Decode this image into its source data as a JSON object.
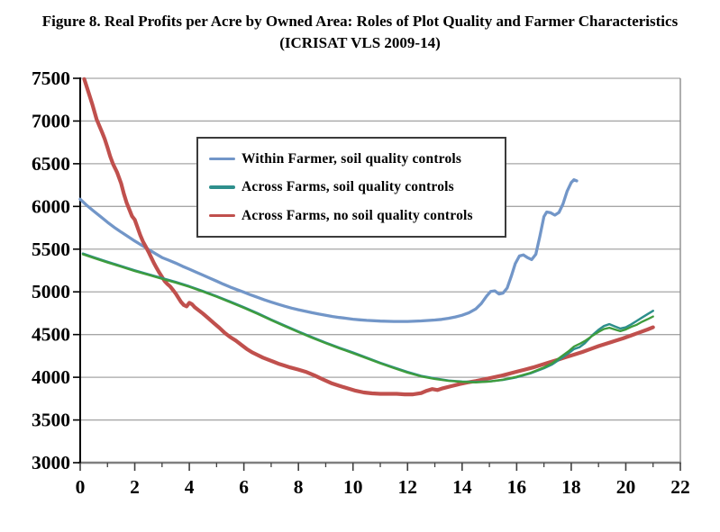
{
  "title": {
    "line1": "Figure 8. Real Profits per Acre by Owned Area: Roles of Plot Quality and Farmer Characteristics",
    "line2": "(ICRISAT VLS 2009-14)"
  },
  "colors": {
    "blue": "#7296C8",
    "teal": "#2E8F8C",
    "green": "#3E9C3C",
    "red": "#C0504D",
    "gridline": "#A6A6A6",
    "axis_y": "#000000",
    "axis_x": "#7F7F7F",
    "plot_right_border": "#8C8C8C",
    "tick": "#404040"
  },
  "chart_data": {
    "type": "line",
    "title": "Figure 8. Real Profits per Acre by Owned Area: Roles of Plot Quality and Farmer Characteristics (ICRISAT VLS 2009-14)",
    "xlabel": "",
    "ylabel": "",
    "xlim": [
      0,
      22
    ],
    "ylim": [
      3000,
      7500
    ],
    "x_ticks": [
      0,
      2,
      4,
      6,
      8,
      10,
      12,
      14,
      16,
      18,
      20,
      22
    ],
    "x_minor_ticks": [
      1,
      3,
      5,
      7,
      9,
      11,
      13,
      15,
      17,
      19,
      21
    ],
    "y_ticks": [
      3000,
      3500,
      4000,
      4500,
      5000,
      5500,
      6000,
      6500,
      7000,
      7500
    ],
    "grid": "horizontal",
    "legend_position": "upper-left-inside",
    "legend": [
      {
        "label": "Within Farmer, soil quality controls",
        "color": "#7296C8"
      },
      {
        "label": "Across Farms, soil quality controls",
        "color": "#2E8F8C"
      },
      {
        "label": "Across Farms, no soil quality controls",
        "color": "#C0504D"
      }
    ],
    "series": [
      {
        "name": "Within Farmer, soil quality controls",
        "color": "#7296C8",
        "width": 3.3,
        "in_legend": true,
        "points": [
          [
            0,
            6085
          ],
          [
            0.25,
            6010
          ],
          [
            0.5,
            5945
          ],
          [
            0.75,
            5880
          ],
          [
            1,
            5815
          ],
          [
            1.25,
            5755
          ],
          [
            1.5,
            5700
          ],
          [
            1.75,
            5648
          ],
          [
            2,
            5596
          ],
          [
            2.25,
            5546
          ],
          [
            2.5,
            5498
          ],
          [
            2.75,
            5448
          ],
          [
            3,
            5402
          ],
          [
            3.25,
            5370
          ],
          [
            3.5,
            5336
          ],
          [
            3.75,
            5300
          ],
          [
            4,
            5266
          ],
          [
            4.25,
            5230
          ],
          [
            4.5,
            5196
          ],
          [
            4.75,
            5160
          ],
          [
            5,
            5126
          ],
          [
            5.25,
            5090
          ],
          [
            5.5,
            5056
          ],
          [
            5.75,
            5026
          ],
          [
            6,
            4996
          ],
          [
            6.25,
            4964
          ],
          [
            6.5,
            4936
          ],
          [
            6.75,
            4906
          ],
          [
            7,
            4880
          ],
          [
            7.25,
            4856
          ],
          [
            7.5,
            4832
          ],
          [
            7.75,
            4810
          ],
          [
            8,
            4790
          ],
          [
            8.25,
            4774
          ],
          [
            8.5,
            4756
          ],
          [
            8.75,
            4740
          ],
          [
            9,
            4726
          ],
          [
            9.25,
            4712
          ],
          [
            9.5,
            4700
          ],
          [
            9.75,
            4690
          ],
          [
            10,
            4680
          ],
          [
            10.25,
            4672
          ],
          [
            10.5,
            4666
          ],
          [
            11,
            4658
          ],
          [
            11.5,
            4654
          ],
          [
            12,
            4654
          ],
          [
            12.5,
            4660
          ],
          [
            13,
            4670
          ],
          [
            13.25,
            4678
          ],
          [
            13.5,
            4690
          ],
          [
            13.75,
            4706
          ],
          [
            14,
            4726
          ],
          [
            14.25,
            4756
          ],
          [
            14.5,
            4800
          ],
          [
            14.7,
            4862
          ],
          [
            14.9,
            4952
          ],
          [
            15.05,
            5005
          ],
          [
            15.2,
            5012
          ],
          [
            15.35,
            4975
          ],
          [
            15.5,
            4985
          ],
          [
            15.65,
            5045
          ],
          [
            15.8,
            5180
          ],
          [
            15.95,
            5330
          ],
          [
            16.1,
            5420
          ],
          [
            16.25,
            5432
          ],
          [
            16.4,
            5400
          ],
          [
            16.55,
            5378
          ],
          [
            16.7,
            5440
          ],
          [
            16.85,
            5650
          ],
          [
            17,
            5880
          ],
          [
            17.1,
            5935
          ],
          [
            17.25,
            5925
          ],
          [
            17.4,
            5898
          ],
          [
            17.55,
            5930
          ],
          [
            17.7,
            6030
          ],
          [
            17.85,
            6180
          ],
          [
            18,
            6280
          ],
          [
            18.1,
            6312
          ],
          [
            18.2,
            6300
          ]
        ]
      },
      {
        "name": "Across Farms, no soil quality controls",
        "color": "#C0504D",
        "width": 4.2,
        "in_legend": true,
        "points": [
          [
            0.15,
            7490
          ],
          [
            0.3,
            7340
          ],
          [
            0.45,
            7190
          ],
          [
            0.6,
            7020
          ],
          [
            0.7,
            6945
          ],
          [
            0.8,
            6870
          ],
          [
            0.9,
            6790
          ],
          [
            1,
            6690
          ],
          [
            1.1,
            6585
          ],
          [
            1.2,
            6500
          ],
          [
            1.35,
            6400
          ],
          [
            1.5,
            6270
          ],
          [
            1.6,
            6150
          ],
          [
            1.7,
            6045
          ],
          [
            1.8,
            5965
          ],
          [
            1.9,
            5885
          ],
          [
            2,
            5845
          ],
          [
            2.1,
            5755
          ],
          [
            2.2,
            5665
          ],
          [
            2.3,
            5590
          ],
          [
            2.4,
            5530
          ],
          [
            2.5,
            5470
          ],
          [
            2.6,
            5405
          ],
          [
            2.7,
            5340
          ],
          [
            2.8,
            5280
          ],
          [
            2.9,
            5225
          ],
          [
            3,
            5175
          ],
          [
            3.1,
            5125
          ],
          [
            3.2,
            5090
          ],
          [
            3.3,
            5062
          ],
          [
            3.4,
            5022
          ],
          [
            3.5,
            4980
          ],
          [
            3.6,
            4930
          ],
          [
            3.7,
            4880
          ],
          [
            3.8,
            4845
          ],
          [
            3.9,
            4830
          ],
          [
            4,
            4872
          ],
          [
            4.1,
            4855
          ],
          [
            4.2,
            4820
          ],
          [
            4.35,
            4782
          ],
          [
            4.5,
            4745
          ],
          [
            4.7,
            4690
          ],
          [
            4.9,
            4635
          ],
          [
            5.1,
            4580
          ],
          [
            5.3,
            4520
          ],
          [
            5.5,
            4470
          ],
          [
            5.7,
            4430
          ],
          [
            5.9,
            4382
          ],
          [
            6.1,
            4332
          ],
          [
            6.3,
            4292
          ],
          [
            6.5,
            4260
          ],
          [
            6.7,
            4230
          ],
          [
            6.9,
            4205
          ],
          [
            7.1,
            4180
          ],
          [
            7.3,
            4155
          ],
          [
            7.5,
            4135
          ],
          [
            7.7,
            4115
          ],
          [
            8,
            4090
          ],
          [
            8.3,
            4060
          ],
          [
            8.6,
            4020
          ],
          [
            8.9,
            3975
          ],
          [
            9.2,
            3932
          ],
          [
            9.5,
            3900
          ],
          [
            9.8,
            3870
          ],
          [
            10.1,
            3842
          ],
          [
            10.4,
            3822
          ],
          [
            10.7,
            3812
          ],
          [
            11,
            3806
          ],
          [
            11.3,
            3806
          ],
          [
            11.6,
            3806
          ],
          [
            11.9,
            3800
          ],
          [
            12.2,
            3800
          ],
          [
            12.5,
            3815
          ],
          [
            12.7,
            3842
          ],
          [
            12.9,
            3862
          ],
          [
            13.1,
            3850
          ],
          [
            13.3,
            3872
          ],
          [
            13.6,
            3896
          ],
          [
            13.9,
            3920
          ],
          [
            14.2,
            3940
          ],
          [
            14.5,
            3956
          ],
          [
            14.8,
            3976
          ],
          [
            15.1,
            3996
          ],
          [
            15.4,
            4016
          ],
          [
            15.7,
            4040
          ],
          [
            16,
            4065
          ],
          [
            16.3,
            4090
          ],
          [
            16.6,
            4115
          ],
          [
            16.9,
            4145
          ],
          [
            17.2,
            4175
          ],
          [
            17.5,
            4205
          ],
          [
            17.8,
            4235
          ],
          [
            18.1,
            4265
          ],
          [
            18.4,
            4295
          ],
          [
            18.7,
            4330
          ],
          [
            19,
            4365
          ],
          [
            19.3,
            4395
          ],
          [
            19.6,
            4425
          ],
          [
            19.9,
            4455
          ],
          [
            20.2,
            4490
          ],
          [
            20.5,
            4525
          ],
          [
            20.8,
            4560
          ],
          [
            21,
            4585
          ]
        ]
      },
      {
        "name": "Across Farms, soil quality controls",
        "color": "#2E8F8C",
        "width": 2.5,
        "in_legend": true,
        "points": [
          [
            0.1,
            5448
          ],
          [
            0.5,
            5405
          ],
          [
            1,
            5352
          ],
          [
            1.5,
            5302
          ],
          [
            2,
            5252
          ],
          [
            2.5,
            5206
          ],
          [
            3,
            5160
          ],
          [
            3.5,
            5116
          ],
          [
            4,
            5066
          ],
          [
            4.5,
            5010
          ],
          [
            5,
            4950
          ],
          [
            5.5,
            4886
          ],
          [
            6,
            4820
          ],
          [
            6.5,
            4750
          ],
          [
            7,
            4676
          ],
          [
            7.5,
            4606
          ],
          [
            8,
            4536
          ],
          [
            8.5,
            4470
          ],
          [
            9,
            4406
          ],
          [
            9.5,
            4346
          ],
          [
            10,
            4290
          ],
          [
            10.5,
            4230
          ],
          [
            11,
            4170
          ],
          [
            11.5,
            4115
          ],
          [
            12,
            4062
          ],
          [
            12.5,
            4016
          ],
          [
            13,
            3986
          ],
          [
            13.5,
            3962
          ],
          [
            14,
            3950
          ],
          [
            14.5,
            3944
          ],
          [
            15,
            3952
          ],
          [
            15.5,
            3970
          ],
          [
            16,
            4000
          ],
          [
            16.5,
            4045
          ],
          [
            17,
            4105
          ],
          [
            17.3,
            4150
          ],
          [
            17.6,
            4215
          ],
          [
            17.9,
            4282
          ],
          [
            18.1,
            4330
          ],
          [
            18.3,
            4352
          ],
          [
            18.5,
            4400
          ],
          [
            18.8,
            4500
          ],
          [
            19,
            4556
          ],
          [
            19.2,
            4600
          ],
          [
            19.4,
            4622
          ],
          [
            19.6,
            4596
          ],
          [
            19.8,
            4570
          ],
          [
            20,
            4585
          ],
          [
            20.2,
            4620
          ],
          [
            20.4,
            4660
          ],
          [
            20.6,
            4700
          ],
          [
            20.8,
            4740
          ],
          [
            21,
            4778
          ]
        ]
      },
      {
        "name": "Across Farms, soil quality controls (overlapping green trace)",
        "color": "#3E9C3C",
        "width": 2.3,
        "in_legend": false,
        "points": [
          [
            0.1,
            5440
          ],
          [
            0.5,
            5397
          ],
          [
            1,
            5344
          ],
          [
            1.5,
            5294
          ],
          [
            2,
            5244
          ],
          [
            2.5,
            5198
          ],
          [
            3,
            5152
          ],
          [
            3.5,
            5108
          ],
          [
            4,
            5058
          ],
          [
            4.5,
            5002
          ],
          [
            5,
            4942
          ],
          [
            5.5,
            4878
          ],
          [
            6,
            4812
          ],
          [
            6.5,
            4742
          ],
          [
            7,
            4668
          ],
          [
            7.5,
            4598
          ],
          [
            8,
            4528
          ],
          [
            8.5,
            4462
          ],
          [
            9,
            4398
          ],
          [
            9.5,
            4338
          ],
          [
            10,
            4282
          ],
          [
            10.5,
            4222
          ],
          [
            11,
            4162
          ],
          [
            11.5,
            4108
          ],
          [
            12,
            4054
          ],
          [
            12.5,
            4010
          ],
          [
            13,
            3980
          ],
          [
            13.5,
            3958
          ],
          [
            14,
            3946
          ],
          [
            14.5,
            3940
          ],
          [
            15,
            3950
          ],
          [
            15.5,
            3972
          ],
          [
            16,
            4006
          ],
          [
            16.5,
            4052
          ],
          [
            17,
            4115
          ],
          [
            17.3,
            4165
          ],
          [
            17.6,
            4235
          ],
          [
            17.9,
            4305
          ],
          [
            18.1,
            4360
          ],
          [
            18.3,
            4390
          ],
          [
            18.5,
            4425
          ],
          [
            18.8,
            4490
          ],
          [
            19,
            4530
          ],
          [
            19.2,
            4565
          ],
          [
            19.4,
            4580
          ],
          [
            19.6,
            4560
          ],
          [
            19.8,
            4540
          ],
          [
            20,
            4560
          ],
          [
            20.2,
            4590
          ],
          [
            20.4,
            4615
          ],
          [
            20.6,
            4650
          ],
          [
            20.8,
            4680
          ],
          [
            21,
            4712
          ]
        ]
      }
    ]
  }
}
